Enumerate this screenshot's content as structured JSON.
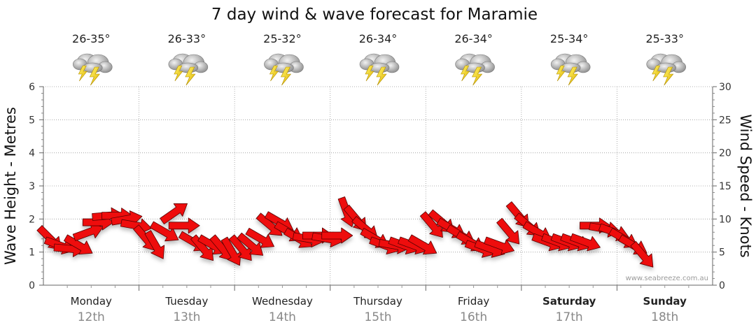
{
  "chart_data": {
    "type": "line",
    "title": "7 day wind & wave forecast for Maramie",
    "y_left_label": "Wave Height - Metres",
    "y_right_label": "Wind Speed - Knots",
    "y_left_lim": [
      0,
      6
    ],
    "y_left_ticks": [
      "0",
      "1",
      "2",
      "3",
      "4",
      "5",
      "6"
    ],
    "y_right_lim": [
      0,
      30
    ],
    "y_right_ticks": [
      "0",
      "5",
      "10",
      "15",
      "20",
      "25",
      "30"
    ],
    "days": [
      {
        "day": "Monday",
        "date": "12th",
        "temp": "26-35°",
        "icon": "thunderstorm-icon",
        "bold": false
      },
      {
        "day": "Tuesday",
        "date": "13th",
        "temp": "26-33°",
        "icon": "thunderstorm-icon",
        "bold": false
      },
      {
        "day": "Wednesday",
        "date": "14th",
        "temp": "25-32°",
        "icon": "thunderstorm-icon",
        "bold": false
      },
      {
        "day": "Thursday",
        "date": "15th",
        "temp": "26-34°",
        "icon": "thunderstorm-icon",
        "bold": false
      },
      {
        "day": "Friday",
        "date": "16th",
        "temp": "26-34°",
        "icon": "thunderstorm-icon",
        "bold": false
      },
      {
        "day": "Saturday",
        "date": "17th",
        "temp": "25-34°",
        "icon": "thunderstorm-icon",
        "bold": true
      },
      {
        "day": "Sunday",
        "date": "18th",
        "temp": "25-33°",
        "icon": "thunderstorm-icon",
        "bold": true
      }
    ],
    "wind_series": {
      "name": "Wind Speed",
      "unit": "knots",
      "points": [
        {
          "day": 0.0,
          "speed": 7,
          "dir": 315
        },
        {
          "day": 0.1,
          "speed": 6,
          "dir": 290
        },
        {
          "day": 0.2,
          "speed": 5.5,
          "dir": 275
        },
        {
          "day": 0.3,
          "speed": 6,
          "dir": 300
        },
        {
          "day": 0.4,
          "speed": 8,
          "dir": 250
        },
        {
          "day": 0.5,
          "speed": 9.5,
          "dir": 270
        },
        {
          "day": 0.6,
          "speed": 10.5,
          "dir": 265
        },
        {
          "day": 0.7,
          "speed": 10.5,
          "dir": 270
        },
        {
          "day": 0.8,
          "speed": 10,
          "dir": 260
        },
        {
          "day": 0.9,
          "speed": 9,
          "dir": 280
        },
        {
          "day": 1.0,
          "speed": 7,
          "dir": 320
        },
        {
          "day": 1.1,
          "speed": 6,
          "dir": 330
        },
        {
          "day": 1.2,
          "speed": 8,
          "dir": 300
        },
        {
          "day": 1.3,
          "speed": 11,
          "dir": 235
        },
        {
          "day": 1.4,
          "speed": 9,
          "dir": 270
        },
        {
          "day": 1.5,
          "speed": 6.5,
          "dir": 300
        },
        {
          "day": 1.6,
          "speed": 5.5,
          "dir": 320
        },
        {
          "day": 1.7,
          "speed": 6,
          "dir": 300
        },
        {
          "day": 1.8,
          "speed": 5.5,
          "dir": 320
        },
        {
          "day": 1.9,
          "speed": 5,
          "dir": 330
        },
        {
          "day": 2.0,
          "speed": 5.5,
          "dir": 320
        },
        {
          "day": 2.1,
          "speed": 6,
          "dir": 310
        },
        {
          "day": 2.2,
          "speed": 7,
          "dir": 300
        },
        {
          "day": 2.3,
          "speed": 9,
          "dir": 310
        },
        {
          "day": 2.4,
          "speed": 9.5,
          "dir": 300
        },
        {
          "day": 2.5,
          "speed": 8,
          "dir": 300
        },
        {
          "day": 2.6,
          "speed": 7,
          "dir": 300
        },
        {
          "day": 2.7,
          "speed": 7,
          "dir": 280
        },
        {
          "day": 2.8,
          "speed": 7.5,
          "dir": 270
        },
        {
          "day": 2.9,
          "speed": 7,
          "dir": 280
        },
        {
          "day": 3.0,
          "speed": 7.5,
          "dir": 270
        },
        {
          "day": 3.1,
          "speed": 11,
          "dir": 340
        },
        {
          "day": 3.2,
          "speed": 10,
          "dir": 320
        },
        {
          "day": 3.3,
          "speed": 8.5,
          "dir": 310
        },
        {
          "day": 3.4,
          "speed": 7,
          "dir": 300
        },
        {
          "day": 3.5,
          "speed": 6,
          "dir": 290
        },
        {
          "day": 3.6,
          "speed": 6,
          "dir": 280
        },
        {
          "day": 3.7,
          "speed": 6,
          "dir": 290
        },
        {
          "day": 3.8,
          "speed": 6,
          "dir": 290
        },
        {
          "day": 3.9,
          "speed": 6,
          "dir": 300
        },
        {
          "day": 4.0,
          "speed": 9,
          "dir": 320
        },
        {
          "day": 4.1,
          "speed": 9.5,
          "dir": 310
        },
        {
          "day": 4.2,
          "speed": 8.5,
          "dir": 300
        },
        {
          "day": 4.3,
          "speed": 7.5,
          "dir": 300
        },
        {
          "day": 4.4,
          "speed": 6.5,
          "dir": 300
        },
        {
          "day": 4.5,
          "speed": 5.5,
          "dir": 290
        },
        {
          "day": 4.6,
          "speed": 5.5,
          "dir": 290
        },
        {
          "day": 4.7,
          "speed": 6,
          "dir": 290
        },
        {
          "day": 4.8,
          "speed": 8,
          "dir": 320
        },
        {
          "day": 4.9,
          "speed": 10.5,
          "dir": 320
        },
        {
          "day": 5.0,
          "speed": 9,
          "dir": 310
        },
        {
          "day": 5.1,
          "speed": 8,
          "dir": 300
        },
        {
          "day": 5.2,
          "speed": 6.5,
          "dir": 290
        },
        {
          "day": 5.3,
          "speed": 6.5,
          "dir": 290
        },
        {
          "day": 5.4,
          "speed": 6.5,
          "dir": 290
        },
        {
          "day": 5.5,
          "speed": 6.5,
          "dir": 290
        },
        {
          "day": 5.6,
          "speed": 6.5,
          "dir": 290
        },
        {
          "day": 5.7,
          "speed": 9,
          "dir": 270
        },
        {
          "day": 5.8,
          "speed": 8.5,
          "dir": 280
        },
        {
          "day": 5.9,
          "speed": 8,
          "dir": 290
        },
        {
          "day": 6.0,
          "speed": 7,
          "dir": 300
        },
        {
          "day": 6.1,
          "speed": 6,
          "dir": 300
        },
        {
          "day": 6.2,
          "speed": 4.5,
          "dir": 320
        }
      ]
    },
    "grid": true,
    "credit": "www.seabreeze.com.au"
  }
}
